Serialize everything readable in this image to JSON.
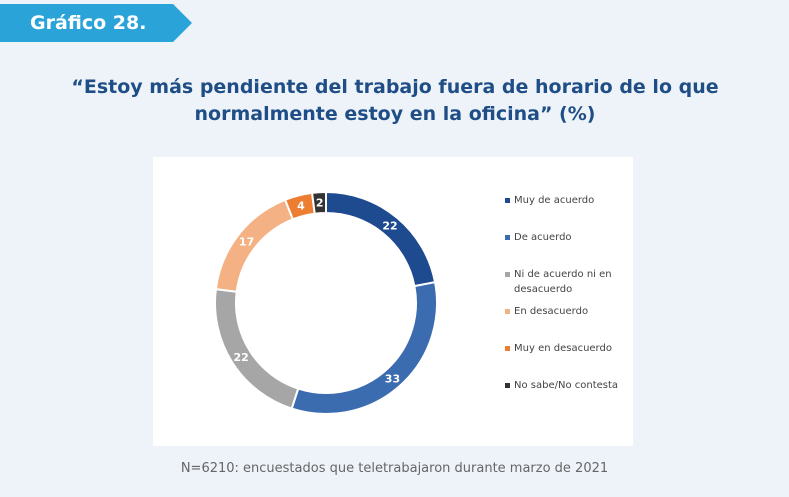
{
  "header": {
    "tag": "Gráfico 28."
  },
  "chart_data": {
    "type": "pie",
    "title": "“Estoy más pendiente del trabajo fuera de horario de lo que normalmente estoy en la oficina” (%)",
    "categories": [
      "Muy de acuerdo",
      "De acuerdo",
      "Ni de acuerdo ni en desacuerdo",
      "En desacuerdo",
      "Muy en desacuerdo",
      "No sabe/No contesta"
    ],
    "values": [
      22,
      33,
      22,
      17,
      4,
      2
    ],
    "colors": [
      "#1e4a8f",
      "#3c6cb0",
      "#a6a6a6",
      "#f4b183",
      "#ed7d31",
      "#333333"
    ],
    "label_colors": [
      "#ffffff",
      "#ffffff",
      "#ffffff",
      "#ffffff",
      "#ffffff",
      "#ffffff"
    ],
    "legend_position": "right",
    "donut": true
  },
  "footer": {
    "source": "N=6210: encuestados que teletrabajaron durante marzo de 2021"
  }
}
